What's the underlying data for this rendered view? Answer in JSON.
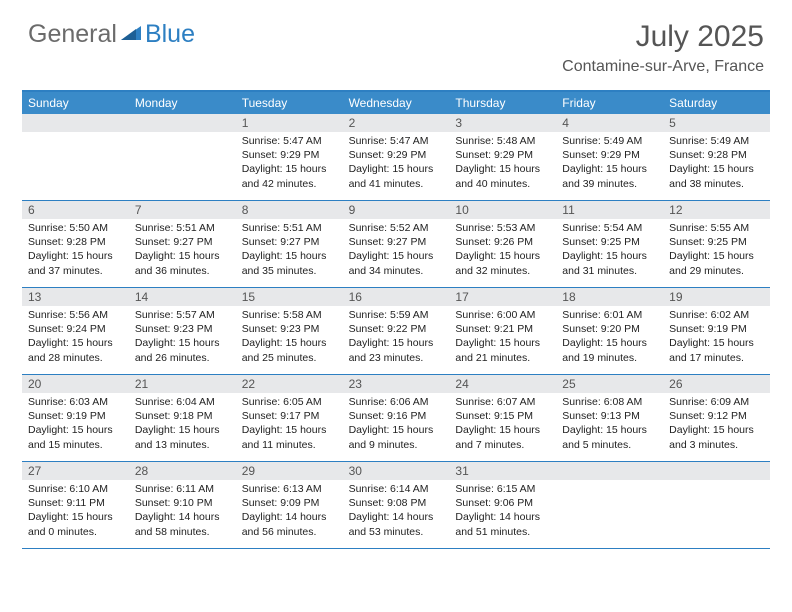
{
  "logo": {
    "part1": "General",
    "part2": "Blue"
  },
  "title": "July 2025",
  "location": "Contamine-sur-Arve, France",
  "colors": {
    "header_blue": "#3a8bc9",
    "rule_blue": "#2d7fc2",
    "daynum_bg": "#e7e8ea",
    "text_gray": "#555555",
    "body_text": "#222222",
    "background": "#ffffff"
  },
  "days_of_week": [
    "Sunday",
    "Monday",
    "Tuesday",
    "Wednesday",
    "Thursday",
    "Friday",
    "Saturday"
  ],
  "weeks": [
    [
      {
        "n": "",
        "empty": true
      },
      {
        "n": "",
        "empty": true
      },
      {
        "n": "1",
        "sunrise": "5:47 AM",
        "sunset": "9:29 PM",
        "daylight": "15 hours and 42 minutes."
      },
      {
        "n": "2",
        "sunrise": "5:47 AM",
        "sunset": "9:29 PM",
        "daylight": "15 hours and 41 minutes."
      },
      {
        "n": "3",
        "sunrise": "5:48 AM",
        "sunset": "9:29 PM",
        "daylight": "15 hours and 40 minutes."
      },
      {
        "n": "4",
        "sunrise": "5:49 AM",
        "sunset": "9:29 PM",
        "daylight": "15 hours and 39 minutes."
      },
      {
        "n": "5",
        "sunrise": "5:49 AM",
        "sunset": "9:28 PM",
        "daylight": "15 hours and 38 minutes."
      }
    ],
    [
      {
        "n": "6",
        "sunrise": "5:50 AM",
        "sunset": "9:28 PM",
        "daylight": "15 hours and 37 minutes."
      },
      {
        "n": "7",
        "sunrise": "5:51 AM",
        "sunset": "9:27 PM",
        "daylight": "15 hours and 36 minutes."
      },
      {
        "n": "8",
        "sunrise": "5:51 AM",
        "sunset": "9:27 PM",
        "daylight": "15 hours and 35 minutes."
      },
      {
        "n": "9",
        "sunrise": "5:52 AM",
        "sunset": "9:27 PM",
        "daylight": "15 hours and 34 minutes."
      },
      {
        "n": "10",
        "sunrise": "5:53 AM",
        "sunset": "9:26 PM",
        "daylight": "15 hours and 32 minutes."
      },
      {
        "n": "11",
        "sunrise": "5:54 AM",
        "sunset": "9:25 PM",
        "daylight": "15 hours and 31 minutes."
      },
      {
        "n": "12",
        "sunrise": "5:55 AM",
        "sunset": "9:25 PM",
        "daylight": "15 hours and 29 minutes."
      }
    ],
    [
      {
        "n": "13",
        "sunrise": "5:56 AM",
        "sunset": "9:24 PM",
        "daylight": "15 hours and 28 minutes."
      },
      {
        "n": "14",
        "sunrise": "5:57 AM",
        "sunset": "9:23 PM",
        "daylight": "15 hours and 26 minutes."
      },
      {
        "n": "15",
        "sunrise": "5:58 AM",
        "sunset": "9:23 PM",
        "daylight": "15 hours and 25 minutes."
      },
      {
        "n": "16",
        "sunrise": "5:59 AM",
        "sunset": "9:22 PM",
        "daylight": "15 hours and 23 minutes."
      },
      {
        "n": "17",
        "sunrise": "6:00 AM",
        "sunset": "9:21 PM",
        "daylight": "15 hours and 21 minutes."
      },
      {
        "n": "18",
        "sunrise": "6:01 AM",
        "sunset": "9:20 PM",
        "daylight": "15 hours and 19 minutes."
      },
      {
        "n": "19",
        "sunrise": "6:02 AM",
        "sunset": "9:19 PM",
        "daylight": "15 hours and 17 minutes."
      }
    ],
    [
      {
        "n": "20",
        "sunrise": "6:03 AM",
        "sunset": "9:19 PM",
        "daylight": "15 hours and 15 minutes."
      },
      {
        "n": "21",
        "sunrise": "6:04 AM",
        "sunset": "9:18 PM",
        "daylight": "15 hours and 13 minutes."
      },
      {
        "n": "22",
        "sunrise": "6:05 AM",
        "sunset": "9:17 PM",
        "daylight": "15 hours and 11 minutes."
      },
      {
        "n": "23",
        "sunrise": "6:06 AM",
        "sunset": "9:16 PM",
        "daylight": "15 hours and 9 minutes."
      },
      {
        "n": "24",
        "sunrise": "6:07 AM",
        "sunset": "9:15 PM",
        "daylight": "15 hours and 7 minutes."
      },
      {
        "n": "25",
        "sunrise": "6:08 AM",
        "sunset": "9:13 PM",
        "daylight": "15 hours and 5 minutes."
      },
      {
        "n": "26",
        "sunrise": "6:09 AM",
        "sunset": "9:12 PM",
        "daylight": "15 hours and 3 minutes."
      }
    ],
    [
      {
        "n": "27",
        "sunrise": "6:10 AM",
        "sunset": "9:11 PM",
        "daylight": "15 hours and 0 minutes."
      },
      {
        "n": "28",
        "sunrise": "6:11 AM",
        "sunset": "9:10 PM",
        "daylight": "14 hours and 58 minutes."
      },
      {
        "n": "29",
        "sunrise": "6:13 AM",
        "sunset": "9:09 PM",
        "daylight": "14 hours and 56 minutes."
      },
      {
        "n": "30",
        "sunrise": "6:14 AM",
        "sunset": "9:08 PM",
        "daylight": "14 hours and 53 minutes."
      },
      {
        "n": "31",
        "sunrise": "6:15 AM",
        "sunset": "9:06 PM",
        "daylight": "14 hours and 51 minutes."
      },
      {
        "n": "",
        "empty": true
      },
      {
        "n": "",
        "empty": true
      }
    ]
  ],
  "labels": {
    "sunrise": "Sunrise: ",
    "sunset": "Sunset: ",
    "daylight": "Daylight: "
  }
}
